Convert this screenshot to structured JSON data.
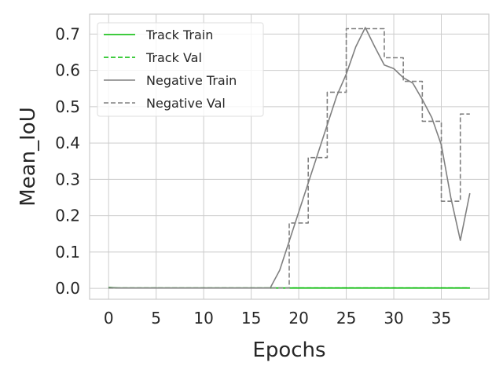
{
  "chart_data": {
    "type": "line",
    "title": "",
    "xlabel": "Epochs",
    "ylabel": "Mean_IoU",
    "xlim": [
      -2,
      40
    ],
    "ylim": [
      -0.03,
      0.755
    ],
    "xticks": [
      0,
      5,
      10,
      15,
      20,
      25,
      30,
      35
    ],
    "yticks": [
      0.0,
      0.1,
      0.2,
      0.3,
      0.4,
      0.5,
      0.6,
      0.7
    ],
    "xtick_labels": [
      "0",
      "5",
      "10",
      "15",
      "20",
      "25",
      "30",
      "35"
    ],
    "ytick_labels": [
      "0.0",
      "0.1",
      "0.2",
      "0.3",
      "0.4",
      "0.5",
      "0.6",
      "0.7"
    ],
    "grid": true,
    "legend_position": "top-left",
    "x": [
      0,
      1,
      2,
      3,
      4,
      5,
      6,
      7,
      8,
      9,
      10,
      11,
      12,
      13,
      14,
      15,
      16,
      17,
      18,
      19,
      20,
      21,
      22,
      23,
      24,
      25,
      26,
      27,
      28,
      29,
      30,
      31,
      32,
      33,
      34,
      35,
      36,
      37,
      38
    ],
    "series": [
      {
        "name": "Track Train",
        "color": "#00bb00",
        "style": "solid",
        "step": false,
        "values": [
          0.003,
          0.001,
          0.001,
          0.001,
          0.001,
          0.001,
          0.001,
          0.001,
          0.001,
          0.001,
          0.001,
          0.001,
          0.001,
          0.001,
          0.001,
          0.001,
          0.001,
          0.001,
          0.001,
          0.001,
          0.001,
          0.001,
          0.001,
          0.001,
          0.001,
          0.001,
          0.001,
          0.001,
          0.001,
          0.001,
          0.001,
          0.001,
          0.001,
          0.001,
          0.001,
          0.001,
          0.001,
          0.001,
          0.001
        ]
      },
      {
        "name": "Track Val",
        "color": "#00bb00",
        "style": "dashed",
        "step": false,
        "values": [
          0.001,
          0.001,
          0.001,
          0.001,
          0.001,
          0.001,
          0.001,
          0.001,
          0.001,
          0.001,
          0.001,
          0.001,
          0.001,
          0.001,
          0.001,
          0.001,
          0.001,
          0.001,
          0.001,
          0.001,
          0.001,
          0.001,
          0.001,
          0.001,
          0.001,
          0.001,
          0.001,
          0.001,
          0.001,
          0.001,
          0.001,
          0.001,
          0.001,
          0.001,
          0.001,
          0.001,
          0.001,
          0.001,
          0.001
        ]
      },
      {
        "name": "Negative Train",
        "color": "#808080",
        "style": "solid",
        "step": false,
        "values": [
          0.002,
          0.001,
          0.001,
          0.001,
          0.001,
          0.001,
          0.001,
          0.001,
          0.001,
          0.001,
          0.001,
          0.001,
          0.001,
          0.001,
          0.001,
          0.001,
          0.001,
          0.001,
          0.05,
          0.13,
          0.21,
          0.29,
          0.37,
          0.45,
          0.53,
          0.59,
          0.665,
          0.718,
          0.665,
          0.615,
          0.605,
          0.58,
          0.565,
          0.52,
          0.47,
          0.395,
          0.25,
          0.132,
          0.262
        ]
      },
      {
        "name": "Negative Val",
        "color": "#808080",
        "style": "dashed",
        "step": true,
        "values": [
          0.001,
          0.001,
          0.001,
          0.001,
          0.001,
          0.001,
          0.001,
          0.001,
          0.001,
          0.001,
          0.001,
          0.001,
          0.001,
          0.001,
          0.001,
          0.001,
          0.001,
          0.001,
          0.001,
          0.18,
          0.18,
          0.36,
          0.36,
          0.54,
          0.54,
          0.715,
          0.715,
          0.715,
          0.715,
          0.635,
          0.635,
          0.57,
          0.57,
          0.46,
          0.46,
          0.24,
          0.24,
          0.48,
          0.48
        ]
      }
    ]
  }
}
